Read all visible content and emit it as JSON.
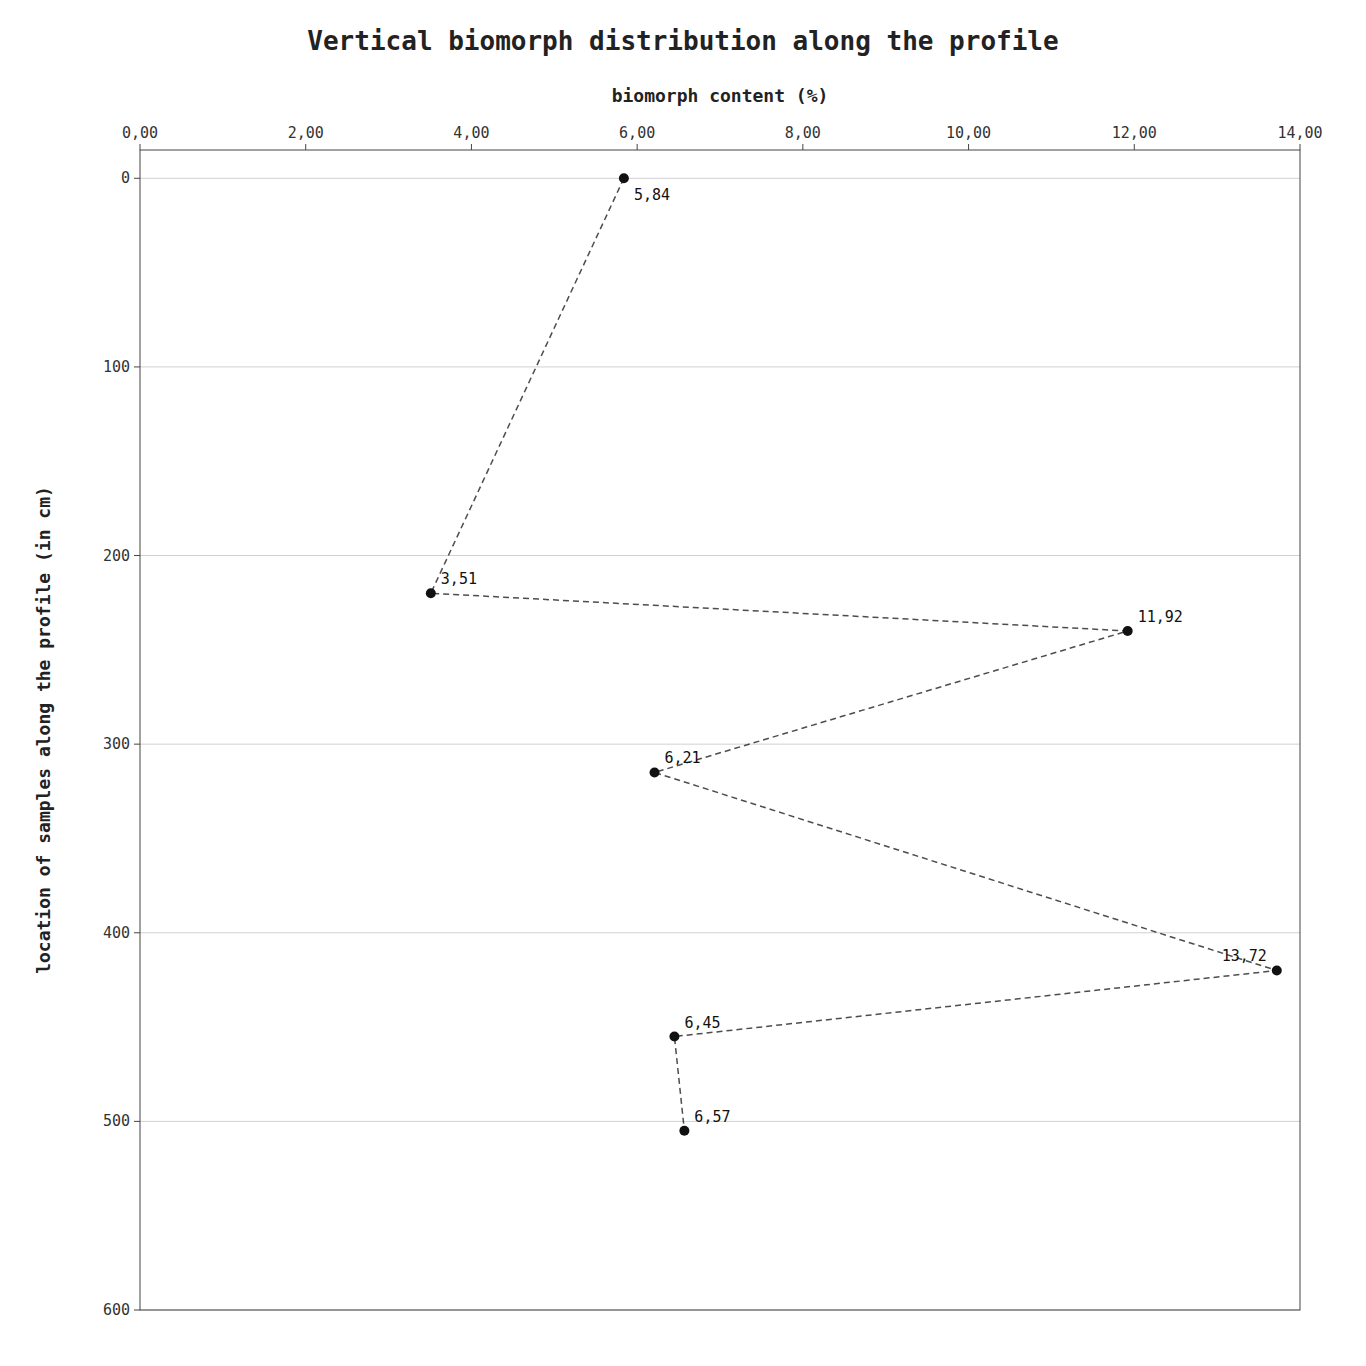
{
  "chart_data": {
    "type": "line",
    "title": "Vertical biomorph distribution along the profile",
    "x_label": "biomorph content (%)",
    "y_label": "location of samples along the profile (in cm)",
    "x": [
      5.84,
      3.51,
      11.92,
      6.21,
      13.72,
      6.45,
      6.57
    ],
    "series": [
      {
        "values": [
          0,
          220,
          240,
          315,
          420,
          455,
          505
        ],
        "color": "#111111",
        "marker": "circle",
        "line_style": "dashed"
      }
    ],
    "annotations": [
      {
        "text": "5,84",
        "x": 5.84,
        "y": 0
      },
      {
        "text": "3,51",
        "x": 3.51,
        "y": 220
      },
      {
        "text": "11,92",
        "x": 11.92,
        "y": 240
      },
      {
        "text": "6,21",
        "x": 6.21,
        "y": 315
      },
      {
        "text": "13,72",
        "x": 13.72,
        "y": 420
      },
      {
        "text": "6,45",
        "x": 6.45,
        "y": 455
      },
      {
        "text": "6,57",
        "x": 6.57,
        "y": 505
      }
    ],
    "xlim": [
      0,
      14
    ],
    "ylim": [
      600,
      -15
    ],
    "xticks": [
      {
        "value": 0.0,
        "label": "0,00"
      },
      {
        "value": 2.0,
        "label": "2,00"
      },
      {
        "value": 4.0,
        "label": "4,00"
      },
      {
        "value": 6.0,
        "label": "6,00"
      },
      {
        "value": 8.0,
        "label": "8,00"
      },
      {
        "value": 10.0,
        "label": "10,00"
      },
      {
        "value": 12.0,
        "label": "12,00"
      },
      {
        "value": 14.0,
        "label": "14,00"
      }
    ],
    "yticks": [
      0,
      100,
      200,
      300,
      400,
      500,
      600
    ],
    "grid": true
  }
}
